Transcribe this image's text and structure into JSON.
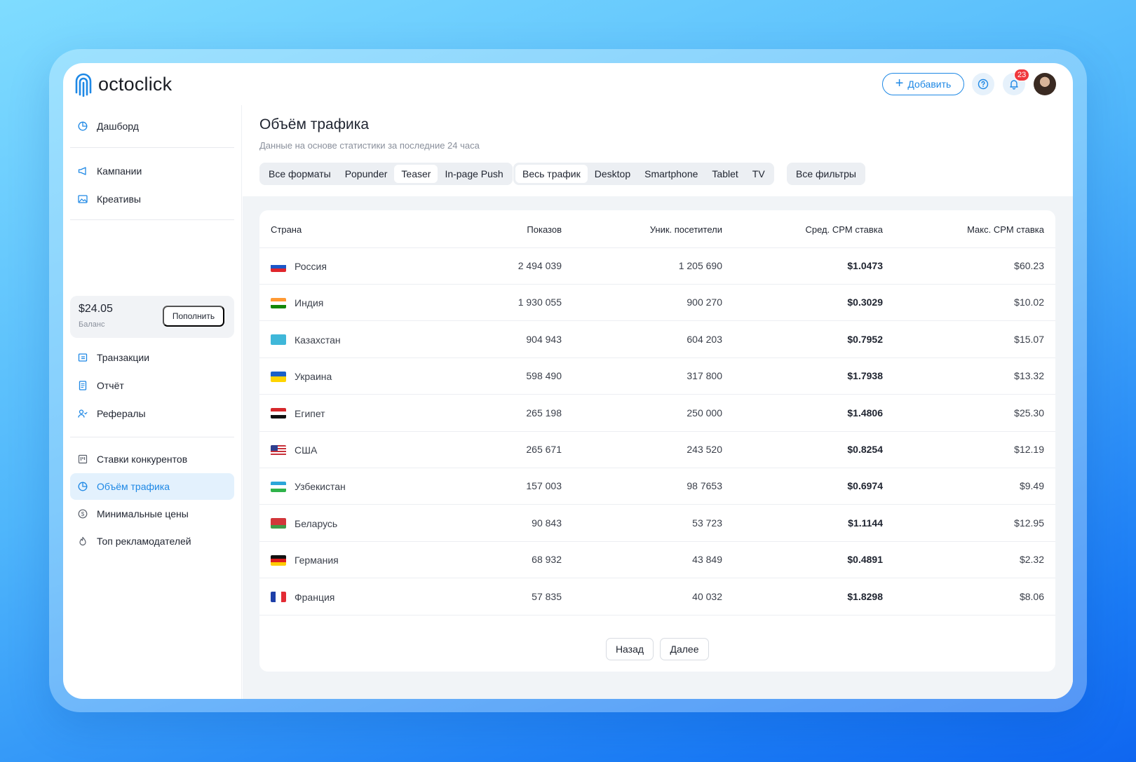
{
  "app": {
    "logo_text": "octoclick"
  },
  "header": {
    "add_label": "Добавить",
    "help_icon": "help-circle-icon",
    "bell_icon": "bell-icon",
    "notifications_count": "23"
  },
  "sidebar": {
    "items": [
      {
        "label": "Дашборд",
        "icon": "pie-chart-icon",
        "active": false
      },
      {
        "label": "Кампании",
        "icon": "megaphone-icon",
        "active": false
      },
      {
        "label": "Креативы",
        "icon": "image-icon",
        "active": false
      },
      {
        "label": "Транзакции",
        "icon": "wallet-icon",
        "active": false
      },
      {
        "label": "Отчёт",
        "icon": "report-icon",
        "active": false
      },
      {
        "label": "Рефералы",
        "icon": "referrals-icon",
        "active": false
      },
      {
        "label": "Ставки конкурентов",
        "icon": "bids-icon",
        "active": false
      },
      {
        "label": "Объём трафика",
        "icon": "pie-chart-icon",
        "active": true
      },
      {
        "label": "Минимальные цены",
        "icon": "dollar-circle-icon",
        "active": false
      },
      {
        "label": "Топ рекламодателей",
        "icon": "flame-icon",
        "active": false
      }
    ],
    "balance": {
      "amount": "$24.05",
      "label": "Баланс",
      "topup_label": "Пополнить"
    }
  },
  "main": {
    "title": "Объём трафика",
    "subtitle": "Данные на основе статистики за последние 24 часа",
    "format_tabs": [
      {
        "label": "Все форматы",
        "selected": false
      },
      {
        "label": "Popunder",
        "selected": false
      },
      {
        "label": "Teaser",
        "selected": true
      },
      {
        "label": "In-page Push",
        "selected": false
      }
    ],
    "device_tabs": [
      {
        "label": "Весь трафик",
        "selected": true
      },
      {
        "label": "Desktop",
        "selected": false
      },
      {
        "label": "Smartphone",
        "selected": false
      },
      {
        "label": "Tablet",
        "selected": false
      },
      {
        "label": "TV",
        "selected": false
      }
    ],
    "filters_label": "Все фильтры"
  },
  "table": {
    "headers": [
      "Страна",
      "Показов",
      "Уник. посетители",
      "Сред. CPM ставка",
      "Макс. CPM ставка"
    ],
    "rows": [
      {
        "country": "Россия",
        "flag": "ru",
        "impressions": "2 494 039",
        "unique": "1 205 690",
        "avg_cpm": "$1.0473",
        "max_cpm": "$60.23"
      },
      {
        "country": "Индия",
        "flag": "in",
        "impressions": "1 930 055",
        "unique": "900 270",
        "avg_cpm": "$0.3029",
        "max_cpm": "$10.02"
      },
      {
        "country": "Казахстан",
        "flag": "kz",
        "impressions": "904 943",
        "unique": "604 203",
        "avg_cpm": "$0.7952",
        "max_cpm": "$15.07"
      },
      {
        "country": "Украина",
        "flag": "ua",
        "impressions": "598 490",
        "unique": "317 800",
        "avg_cpm": "$1.7938",
        "max_cpm": "$13.32"
      },
      {
        "country": "Египет",
        "flag": "eg",
        "impressions": "265 198",
        "unique": "250 000",
        "avg_cpm": "$1.4806",
        "max_cpm": "$25.30"
      },
      {
        "country": "США",
        "flag": "us",
        "impressions": "265 671",
        "unique": "243 520",
        "avg_cpm": "$0.8254",
        "max_cpm": "$12.19"
      },
      {
        "country": "Узбекистан",
        "flag": "uz",
        "impressions": "157 003",
        "unique": "98 7653",
        "avg_cpm": "$0.6974",
        "max_cpm": "$9.49"
      },
      {
        "country": "Беларусь",
        "flag": "by",
        "impressions": "90 843",
        "unique": "53 723",
        "avg_cpm": "$1.1144",
        "max_cpm": "$12.95"
      },
      {
        "country": "Германия",
        "flag": "de",
        "impressions": "68 932",
        "unique": "43 849",
        "avg_cpm": "$0.4891",
        "max_cpm": "$2.32"
      },
      {
        "country": "Франция",
        "flag": "fr",
        "impressions": "57 835",
        "unique": "40 032",
        "avg_cpm": "$1.8298",
        "max_cpm": "$8.06"
      }
    ],
    "prev_label": "Назад",
    "next_label": "Далее"
  },
  "colors": {
    "accent": "#1e88e5",
    "badge": "#f0383d",
    "active_bg": "#e3f1fd"
  }
}
